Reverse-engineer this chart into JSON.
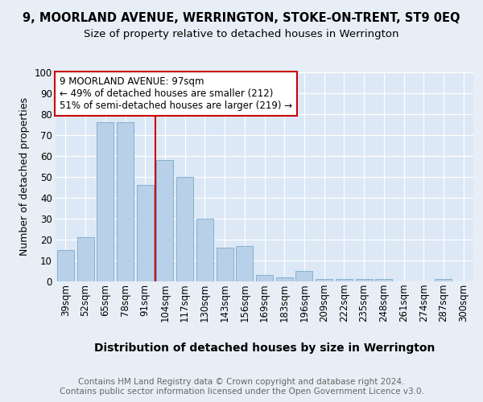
{
  "title": "9, MOORLAND AVENUE, WERRINGTON, STOKE-ON-TRENT, ST9 0EQ",
  "subtitle": "Size of property relative to detached houses in Werrington",
  "xlabel": "Distribution of detached houses by size in Werrington",
  "ylabel": "Number of detached properties",
  "bar_labels": [
    "39sqm",
    "52sqm",
    "65sqm",
    "78sqm",
    "91sqm",
    "104sqm",
    "117sqm",
    "130sqm",
    "143sqm",
    "156sqm",
    "169sqm",
    "183sqm",
    "196sqm",
    "209sqm",
    "222sqm",
    "235sqm",
    "248sqm",
    "261sqm",
    "274sqm",
    "287sqm",
    "300sqm"
  ],
  "bar_values": [
    15,
    21,
    76,
    76,
    46,
    58,
    50,
    30,
    16,
    17,
    3,
    2,
    5,
    1,
    1,
    1,
    1,
    0,
    0,
    1,
    0
  ],
  "bar_color": "#b8d0e8",
  "bar_edge_color": "#7aaaca",
  "vline_x": 4.5,
  "vline_color": "#cc0000",
  "annotation_text": "9 MOORLAND AVENUE: 97sqm\n← 49% of detached houses are smaller (212)\n51% of semi-detached houses are larger (219) →",
  "annotation_box_color": "#ffffff",
  "annotation_box_edge": "#cc0000",
  "footer": "Contains HM Land Registry data © Crown copyright and database right 2024.\nContains public sector information licensed under the Open Government Licence v3.0.",
  "bg_color": "#e8eef5",
  "plot_bg_color": "#dce8f5",
  "grid_color": "#ffffff",
  "ylim": [
    0,
    100
  ],
  "title_fontsize": 10.5,
  "subtitle_fontsize": 9.5,
  "xlabel_fontsize": 10,
  "ylabel_fontsize": 9,
  "tick_fontsize": 8.5,
  "annot_fontsize": 8.5,
  "footer_fontsize": 7.5
}
